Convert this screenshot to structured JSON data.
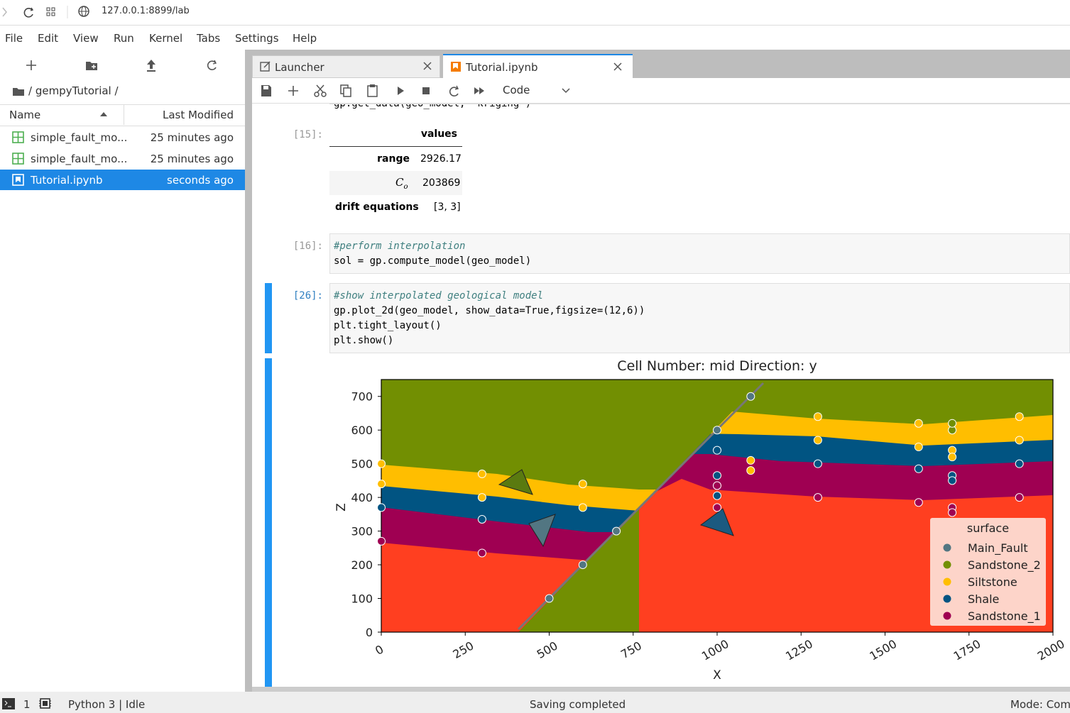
{
  "browser": {
    "url": "127.0.0.1:8899/lab"
  },
  "menu": [
    "File",
    "Edit",
    "View",
    "Run",
    "Kernel",
    "Tabs",
    "Settings",
    "Help"
  ],
  "file_browser": {
    "path": "/ gempyTutorial /",
    "columns": [
      "Name",
      "Last Modified"
    ],
    "files": [
      {
        "name": "simple_fault_mo...",
        "modified": "25 minutes ago"
      },
      {
        "name": "simple_fault_mo...",
        "modified": "25 minutes ago"
      },
      {
        "name": "Tutorial.ipynb",
        "modified": "seconds ago"
      }
    ]
  },
  "tabs": [
    "Launcher",
    "Tutorial.ipynb"
  ],
  "toolbar": {
    "cell_type": "Code"
  },
  "cells": [
    {
      "code": [
        "gp.get_data(geo_model, 'kriging')"
      ]
    },
    {
      "prompt": "[15]:",
      "table": {
        "header": "values",
        "rows": [
          {
            "label": "range",
            "value": "2926.17"
          },
          {
            "label": "C",
            "sub": "o",
            "value": "203869"
          },
          {
            "label": "drift equations",
            "value": "[3, 3]"
          }
        ]
      }
    },
    {
      "prompt": "[16]:",
      "code": [
        "#perform interpolation",
        "sol = gp.compute_model(geo_model)"
      ]
    },
    {
      "prompt": "[26]:",
      "code": [
        "#show interpolated geological model",
        "gp.plot_2d(geo_model, show_data=True,figsize=(12,6))",
        "plt.tight_layout()",
        "plt.show()"
      ]
    }
  ],
  "chart_data": {
    "type": "scatter",
    "title": "Cell Number: mid Direction: y",
    "xlabel": "X",
    "ylabel": "Z",
    "xlim": [
      0,
      2000
    ],
    "ylim": [
      0,
      750
    ],
    "xticks": [
      0,
      250,
      500,
      750,
      1000,
      1250,
      1500,
      1750,
      2000
    ],
    "yticks": [
      0,
      100,
      200,
      300,
      400,
      500,
      600,
      700
    ],
    "grid": false,
    "legend": {
      "title": "surface",
      "position": "lower right"
    },
    "series": [
      {
        "name": "Main_Fault",
        "color": "#527682",
        "x": [
          500,
          600,
          700,
          1000,
          1100
        ],
        "values": [
          100,
          200,
          300,
          600,
          700
        ]
      },
      {
        "name": "Sandstone_2",
        "color": "#728f02",
        "x": [
          1700,
          1700
        ],
        "values": [
          600,
          620
        ]
      },
      {
        "name": "Siltstone",
        "color": "#ffbe00",
        "x": [
          0,
          0,
          300,
          300,
          600,
          600,
          1100,
          1100,
          1300,
          1300,
          1600,
          1600,
          1700,
          1700,
          1900,
          1900
        ],
        "values": [
          500,
          440,
          470,
          400,
          440,
          370,
          510,
          480,
          640,
          570,
          620,
          550,
          540,
          520,
          640,
          570
        ]
      },
      {
        "name": "Shale",
        "color": "#015482",
        "x": [
          0,
          300,
          1000,
          1000,
          1000,
          1300,
          1600,
          1700,
          1700,
          1900
        ],
        "values": [
          370,
          335,
          540,
          465,
          405,
          500,
          485,
          465,
          450,
          500
        ]
      },
      {
        "name": "Sandstone_1",
        "color": "#9f0052",
        "x": [
          0,
          300,
          1000,
          1000,
          1300,
          1600,
          1700,
          1700,
          1900
        ],
        "values": [
          270,
          235,
          435,
          370,
          400,
          385,
          370,
          355,
          400
        ]
      }
    ]
  },
  "status": {
    "terminals": "1",
    "kernel": "Python 3 | Idle",
    "message": "Saving completed",
    "mode": "Mode: Com"
  }
}
